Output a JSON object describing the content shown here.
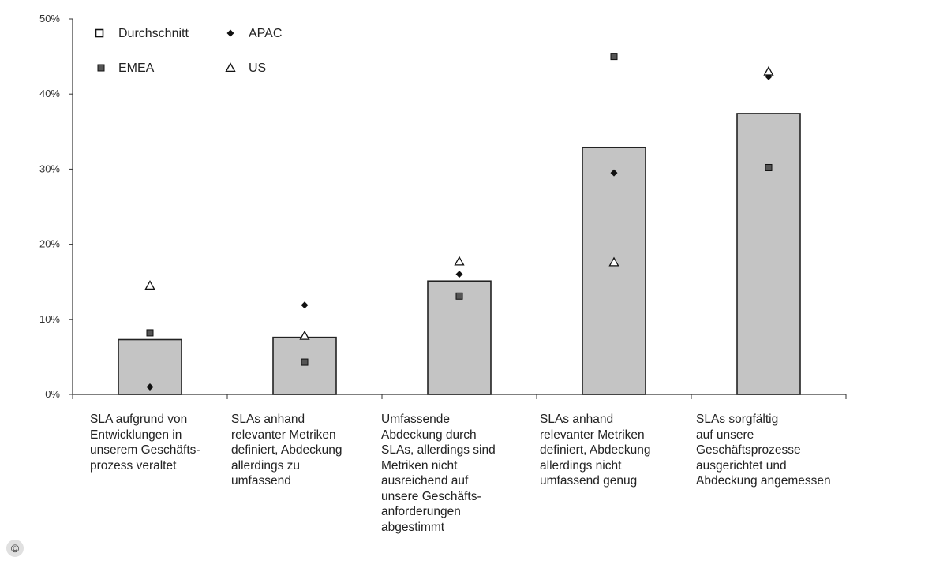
{
  "chart_data": {
    "type": "bar",
    "y_axis": {
      "min": 0,
      "max": 50,
      "ticks": [
        {
          "value": 0,
          "label": "0%"
        },
        {
          "value": 10,
          "label": "10%"
        },
        {
          "value": 20,
          "label": "20%"
        },
        {
          "value": 30,
          "label": "30%"
        },
        {
          "value": 40,
          "label": "40%"
        },
        {
          "value": 50,
          "label": "50%"
        }
      ]
    },
    "grid": false,
    "legend_position": "top-left",
    "legend": [
      {
        "name": "Durchschnitt",
        "marker": "hollow-square"
      },
      {
        "name": "APAC",
        "marker": "diamond"
      },
      {
        "name": "EMEA",
        "marker": "small-square"
      },
      {
        "name": "US",
        "marker": "triangle"
      }
    ],
    "categories": [
      {
        "lines": [
          "SLA aufgrund von",
          "Entwicklungen in",
          "unserem Geschäfts-",
          "prozess veraltet"
        ]
      },
      {
        "lines": [
          "SLAs anhand",
          "relevanter Metriken",
          "definiert, Abdeckung",
          "allerdings zu",
          "umfassend"
        ]
      },
      {
        "lines": [
          "Umfassende",
          "Abdeckung durch",
          "SLAs, allerdings sind",
          "Metriken nicht",
          "ausreichend auf",
          "unsere Geschäfts-",
          "anforderungen",
          "abgestimmt"
        ]
      },
      {
        "lines": [
          "SLAs anhand",
          "relevanter Metriken",
          "definiert, Abdeckung",
          "allerdings nicht",
          "umfassend genug"
        ]
      },
      {
        "lines": [
          "SLAs sorgfältig",
          "auf unsere",
          "Geschäftsprozesse",
          "ausgerichtet und",
          "Abdeckung angemessen"
        ]
      }
    ],
    "series": [
      {
        "name": "Durchschnitt",
        "kind": "bar",
        "color": "#c4c4c4",
        "values": [
          7.3,
          7.6,
          15.1,
          32.9,
          37.4
        ]
      },
      {
        "name": "APAC",
        "kind": "marker",
        "marker": "diamond",
        "values": [
          1.0,
          11.9,
          16.0,
          29.5,
          42.3
        ]
      },
      {
        "name": "EMEA",
        "kind": "marker",
        "marker": "small-square",
        "values": [
          8.2,
          4.3,
          13.1,
          45.0,
          30.2
        ]
      },
      {
        "name": "US",
        "kind": "marker",
        "marker": "triangle",
        "values": [
          14.5,
          7.8,
          17.7,
          17.6,
          43.0
        ]
      }
    ]
  },
  "copyright_symbol": "©"
}
